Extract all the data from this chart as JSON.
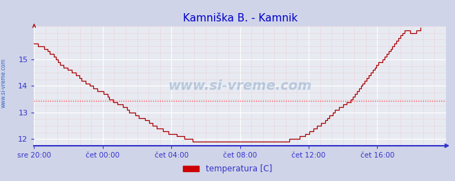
{
  "title": "Kamniška B. - Kamnik",
  "title_color": "#0000cc",
  "title_fontsize": 11,
  "ylabel_text": "www.si-vreme.com",
  "ylabel_color": "#3366bb",
  "bg_color": "#d0d4e8",
  "plot_bg_color": "#e8eaf2",
  "grid_color_major": "#ffffff",
  "grid_color_minor": "#e8b8b8",
  "line_color": "#aa0000",
  "axis_color": "#3333cc",
  "tick_color": "#3333cc",
  "avg_line_color": "#ff3333",
  "avg_line_value": 13.45,
  "xlim": [
    0,
    288
  ],
  "ylim": [
    11.75,
    16.25
  ],
  "yticks": [
    12,
    13,
    14,
    15
  ],
  "xtick_positions": [
    0,
    48,
    96,
    144,
    192,
    240
  ],
  "xtick_labels": [
    "sre 20:00",
    "čet 00:00",
    "čet 04:00",
    "čet 08:00",
    "čet 12:00",
    "čet 16:00"
  ],
  "legend_label": "temperatura [C]",
  "legend_color": "#cc0000",
  "watermark": "www.si-vreme.com",
  "temperature_data": [
    15.6,
    15.6,
    15.5,
    15.5,
    15.5,
    15.4,
    15.4,
    15.3,
    15.2,
    15.2,
    15.1,
    15.0,
    14.9,
    14.8,
    14.8,
    14.7,
    14.7,
    14.6,
    14.6,
    14.5,
    14.5,
    14.4,
    14.4,
    14.3,
    14.2,
    14.2,
    14.1,
    14.1,
    14.0,
    14.0,
    13.9,
    13.9,
    13.8,
    13.8,
    13.8,
    13.7,
    13.7,
    13.6,
    13.5,
    13.5,
    13.4,
    13.4,
    13.3,
    13.3,
    13.3,
    13.2,
    13.2,
    13.1,
    13.0,
    13.0,
    13.0,
    12.9,
    12.9,
    12.8,
    12.8,
    12.8,
    12.7,
    12.7,
    12.6,
    12.6,
    12.5,
    12.5,
    12.4,
    12.4,
    12.4,
    12.3,
    12.3,
    12.3,
    12.2,
    12.2,
    12.2,
    12.2,
    12.1,
    12.1,
    12.1,
    12.1,
    12.0,
    12.0,
    12.0,
    12.0,
    11.9,
    11.9,
    11.9,
    11.9,
    11.9,
    11.9,
    11.9,
    11.9,
    11.9,
    11.9,
    11.9,
    11.9,
    11.9,
    11.9,
    11.9,
    11.9,
    11.9,
    11.9,
    11.9,
    11.9,
    11.9,
    11.9,
    11.9,
    11.9,
    11.9,
    11.9,
    11.9,
    11.9,
    11.9,
    11.9,
    11.9,
    11.9,
    11.9,
    11.9,
    11.9,
    11.9,
    11.9,
    11.9,
    11.9,
    11.9,
    11.9,
    11.9,
    11.9,
    11.9,
    11.9,
    11.9,
    11.9,
    11.9,
    11.9,
    12.0,
    12.0,
    12.0,
    12.0,
    12.0,
    12.1,
    12.1,
    12.1,
    12.2,
    12.2,
    12.3,
    12.3,
    12.4,
    12.4,
    12.5,
    12.5,
    12.6,
    12.6,
    12.7,
    12.8,
    12.9,
    12.9,
    13.0,
    13.1,
    13.1,
    13.2,
    13.2,
    13.3,
    13.3,
    13.4,
    13.4,
    13.5,
    13.6,
    13.7,
    13.8,
    13.9,
    14.0,
    14.1,
    14.2,
    14.3,
    14.4,
    14.5,
    14.6,
    14.7,
    14.8,
    14.9,
    14.9,
    15.0,
    15.1,
    15.2,
    15.3,
    15.4,
    15.5,
    15.6,
    15.7,
    15.8,
    15.9,
    16.0,
    16.1,
    16.1,
    16.1,
    16.0,
    16.0,
    16.0,
    16.1,
    16.1,
    16.2
  ]
}
